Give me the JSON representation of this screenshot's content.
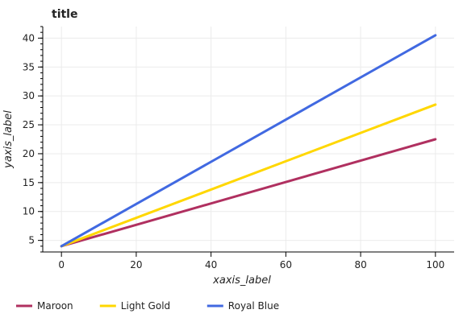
{
  "chart_data": {
    "type": "line",
    "title": "title",
    "xlabel": "xaxis_label",
    "ylabel": "yaxis_label",
    "xlim": [
      -5,
      105
    ],
    "ylim": [
      3,
      42
    ],
    "x_ticks": [
      0,
      20,
      40,
      60,
      80,
      100
    ],
    "y_ticks": [
      5,
      10,
      15,
      20,
      25,
      30,
      35,
      40
    ],
    "grid": true,
    "legend_position": "bottom",
    "series": [
      {
        "name": "Maroon",
        "color": "#b03060",
        "x": [
          0,
          100
        ],
        "y": [
          4,
          22.5
        ]
      },
      {
        "name": "Light Gold",
        "color": "#ffd700",
        "x": [
          0,
          100
        ],
        "y": [
          4,
          28.5
        ]
      },
      {
        "name": "Royal Blue",
        "color": "#4169e1",
        "x": [
          0,
          100
        ],
        "y": [
          4,
          40.5
        ]
      }
    ]
  }
}
